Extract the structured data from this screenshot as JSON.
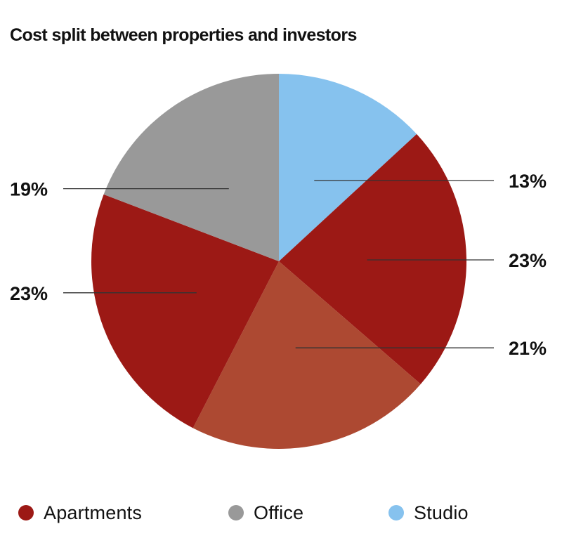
{
  "chart_data": {
    "type": "pie",
    "title": "Cost split between properties and investors",
    "slices": [
      {
        "category": "Studio",
        "value": 13,
        "label": "13%",
        "color": "#86c2ee"
      },
      {
        "category": "Apartments",
        "value": 23,
        "label": "23%",
        "color": "#9c1915"
      },
      {
        "category": "Apartments",
        "value": 21,
        "label": "21%",
        "color": "#ad4932"
      },
      {
        "category": "Apartments",
        "value": 23,
        "label": "23%",
        "color": "#9c1915"
      },
      {
        "category": "Office",
        "value": 19,
        "label": "19%",
        "color": "#999999"
      }
    ],
    "legend": {
      "position": "bottom",
      "items": [
        {
          "label": "Apartments",
          "color": "#9c1915"
        },
        {
          "label": "Office",
          "color": "#999999"
        },
        {
          "label": "Studio",
          "color": "#86c2ee"
        }
      ]
    }
  }
}
